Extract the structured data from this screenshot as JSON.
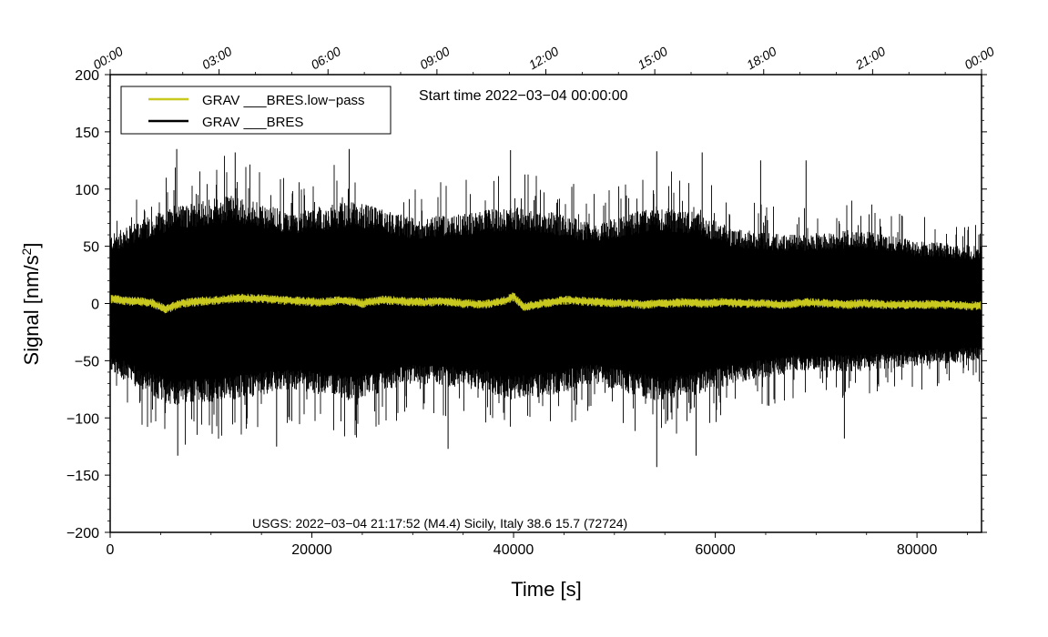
{
  "chart_data": {
    "type": "line",
    "title": "",
    "xlabel": "Time [s]",
    "ylabel_main": "Signal [nm/s",
    "ylabel_sup": "2",
    "ylabel_end": "]",
    "xlim": [
      0,
      86400
    ],
    "ylim": [
      -200,
      200
    ],
    "x_ticks": [
      0,
      20000,
      40000,
      60000,
      80000
    ],
    "x_tick_labels": [
      "0",
      "20000",
      "40000",
      "60000",
      "80000"
    ],
    "y_ticks": [
      -200,
      -150,
      -100,
      -50,
      0,
      50,
      100,
      150,
      200
    ],
    "y_tick_labels": [
      "−200",
      "−150",
      "−100",
      "−50",
      "0",
      "50",
      "100",
      "150",
      "200"
    ],
    "top_axis_ticks": [
      0,
      10800,
      21600,
      32400,
      43200,
      54000,
      64800,
      75600,
      86400
    ],
    "top_axis_labels": [
      "00:00",
      "03:00",
      "06:00",
      "09:00",
      "12:00",
      "15:00",
      "18:00",
      "21:00",
      "00:00"
    ],
    "legend": {
      "placement": "top-left",
      "entries": [
        {
          "label": "GRAV ___BRES.low−pass",
          "color": "#c8c81e"
        },
        {
          "label": "GRAV ___BRES",
          "color": "#000000"
        }
      ]
    },
    "annotations": {
      "start_time": "Start time 2022−03−04 00:00:00",
      "event": "USGS: 2022−03−04 21:17:52 (M4.4) Sicily, Italy 38.6 15.7 (72724)"
    },
    "event_time_s": 76672,
    "series": [
      {
        "name": "GRAV ___BRES",
        "color": "#000000",
        "envelope_x": [
          0,
          6000,
          12000,
          18000,
          24000,
          30000,
          36000,
          40000,
          44000,
          48000,
          54000,
          58000,
          62000,
          68000,
          74000,
          80000,
          86400
        ],
        "envelope_upper": [
          60,
          85,
          95,
          80,
          90,
          75,
          80,
          85,
          80,
          70,
          85,
          80,
          65,
          60,
          65,
          55,
          50
        ],
        "envelope_lower": [
          -60,
          -90,
          -85,
          -75,
          -85,
          -70,
          -75,
          -85,
          -80,
          -70,
          -85,
          -80,
          -70,
          -60,
          -60,
          -55,
          -50
        ],
        "peaks_x": [
          6600,
          12400,
          23700,
          39700,
          54200,
          58700,
          64500,
          69000
        ],
        "peaks_y": [
          135,
          132,
          135,
          134,
          133,
          132,
          125,
          125
        ],
        "troughs_x": [
          6700,
          16500,
          33500,
          54200,
          58100,
          72800
        ],
        "troughs_y": [
          -133,
          -125,
          -127,
          -143,
          -133,
          -118
        ]
      },
      {
        "name": "GRAV ___BRES.low−pass",
        "color": "#c8c81e",
        "x": [
          0,
          2000,
          4000,
          5500,
          7000,
          9000,
          11000,
          13000,
          15000,
          17000,
          19000,
          21000,
          23000,
          25000,
          27000,
          29000,
          31000,
          33000,
          35000,
          37000,
          39000,
          40000,
          41000,
          43000,
          45000,
          47000,
          49000,
          51000,
          53000,
          55000,
          57000,
          59000,
          61000,
          63000,
          65000,
          67000,
          69000,
          71000,
          73000,
          75000,
          77000,
          79000,
          81000,
          83000,
          85000,
          86400
        ],
        "y": [
          4,
          2,
          1,
          -5,
          0,
          2,
          3,
          5,
          4,
          3,
          2,
          1,
          3,
          0,
          3,
          2,
          1,
          2,
          0,
          -1,
          2,
          6,
          -3,
          0,
          3,
          2,
          1,
          0,
          -1,
          0,
          1,
          0,
          1,
          0,
          0,
          -1,
          1,
          0,
          -1,
          0,
          -1,
          -1,
          -1,
          -1,
          -2,
          -2
        ],
        "band": 4
      }
    ]
  }
}
